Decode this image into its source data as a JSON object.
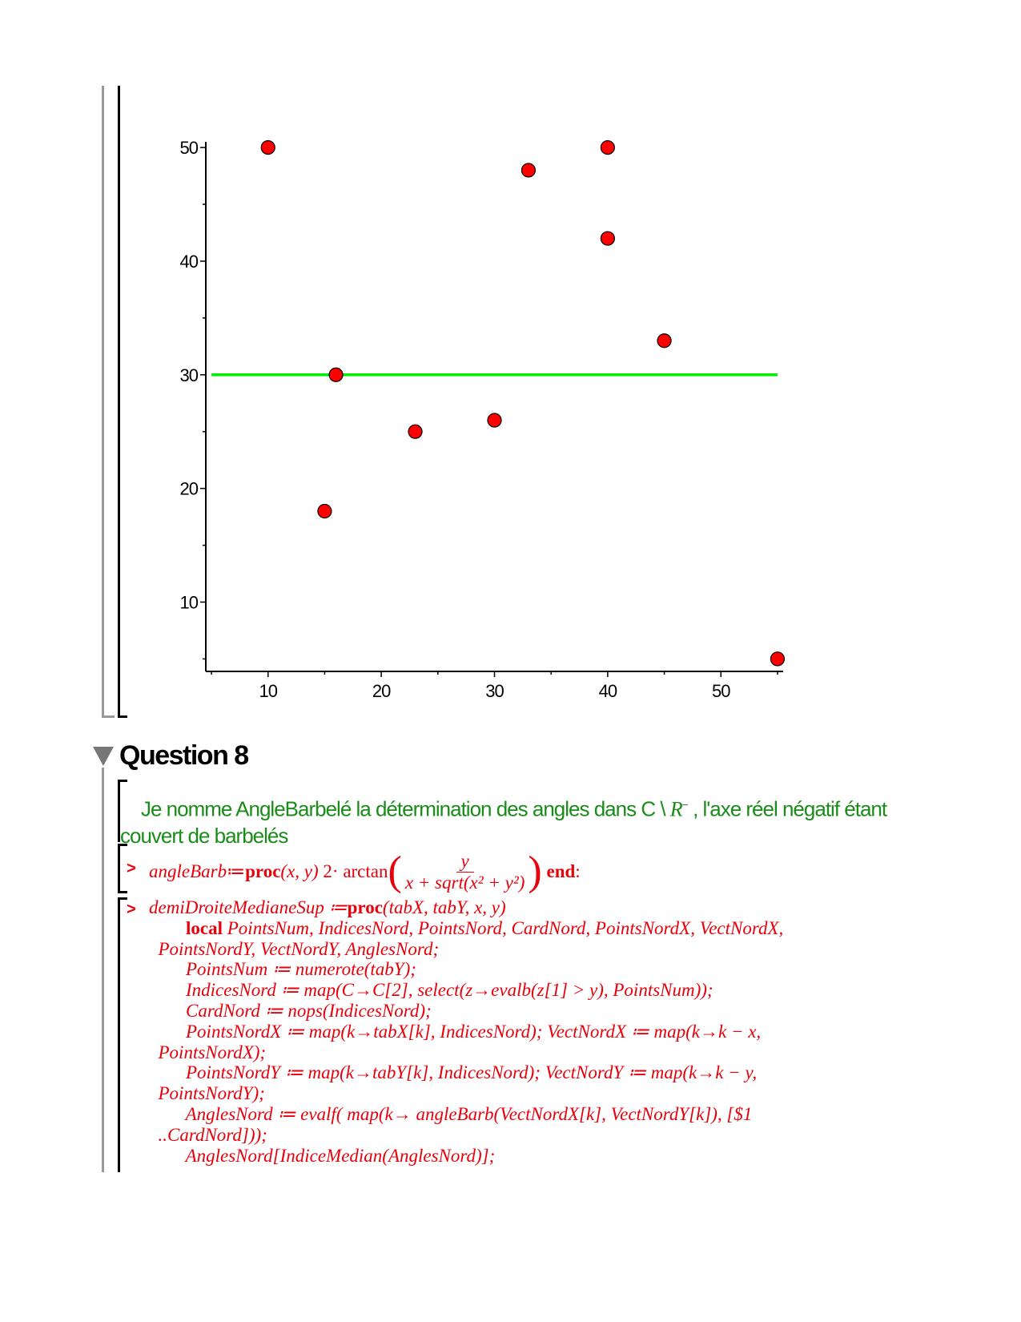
{
  "chart_data": {
    "type": "scatter",
    "x": [
      10,
      15,
      16,
      23,
      30,
      33,
      40,
      40,
      45,
      55
    ],
    "y": [
      50,
      18,
      30,
      25,
      26,
      48,
      50,
      42,
      33,
      5
    ],
    "point_color": "#ff0000",
    "hline": {
      "y": 30,
      "x_range": [
        5,
        55
      ],
      "color": "#00ee00"
    },
    "xlim": [
      4.5,
      55.5
    ],
    "ylim": [
      3.9,
      50.5
    ],
    "xticks": [
      10,
      20,
      30,
      40,
      50
    ],
    "yticks": [
      10,
      20,
      30,
      40,
      50
    ],
    "title": "",
    "xlabel": "",
    "ylabel": "",
    "grid": false
  },
  "section": {
    "title": "Question 8",
    "paragraph_before": "Je nomme AngleBarbelé la détermination des angles dans C \\ ",
    "paragraph_R": "R",
    "paragraph_sup": "−",
    "paragraph_after": " , l'axe réel négatif étant couvert de barbelés"
  },
  "prompt": ">",
  "angleBarb": {
    "name": "angleBarb",
    "assign": " ≔",
    "proc": "proc",
    "args": "(x, y) ",
    "body_prefix": "2· arctan",
    "numerator": "y",
    "denominator": "x + sqrt(x² + y²)",
    "end": "end",
    "colon": ":"
  },
  "proc_lines": [
    [
      {
        "t": "demiDroiteMedianeSup ≔",
        "s": "i"
      },
      {
        "t": "proc",
        "s": "b"
      },
      {
        "t": "(tabX, tabY, x, y)",
        "s": "i"
      }
    ],
    [
      {
        "t": "        "
      },
      {
        "t": "local",
        "s": "b"
      },
      {
        "t": " PointsNum, IndicesNord, PointsNord, CardNord, PointsNordX, VectNordX,",
        "s": "i"
      }
    ],
    [
      {
        "t": "  PointsNordY, VectNordY, AnglesNord;",
        "s": "i"
      }
    ],
    [
      {
        "t": "        PointsNum ≔ numerote(tabY);",
        "s": "i"
      }
    ],
    [
      {
        "t": "        IndicesNord ≔ map(C→C[2], select(z→evalb(z[1] > y), PointsNum));",
        "s": "i"
      }
    ],
    [
      {
        "t": "        CardNord ≔ nops(IndicesNord);",
        "s": "i"
      }
    ],
    [
      {
        "t": "        PointsNordX ≔ map(k→tabX[k], IndicesNord); VectNordX ≔ map(k→k − x,",
        "s": "i"
      }
    ],
    [
      {
        "t": "  PointsNordX);",
        "s": "i"
      }
    ],
    [
      {
        "t": "        PointsNordY ≔ map(k→tabY[k], IndicesNord); VectNordY ≔ map(k→k − y,",
        "s": "i"
      }
    ],
    [
      {
        "t": "  PointsNordY);",
        "s": "i"
      }
    ],
    [
      {
        "t": "        AnglesNord ≔ evalf( map(k→ angleBarb(VectNordX[k], VectNordY[k]), [$1",
        "s": "i"
      }
    ],
    [
      {
        "t": "  ..CardNord]));",
        "s": "i"
      }
    ],
    [
      {
        "t": "        AnglesNord[IndiceMedian(AnglesNord)];",
        "s": "i"
      }
    ]
  ]
}
